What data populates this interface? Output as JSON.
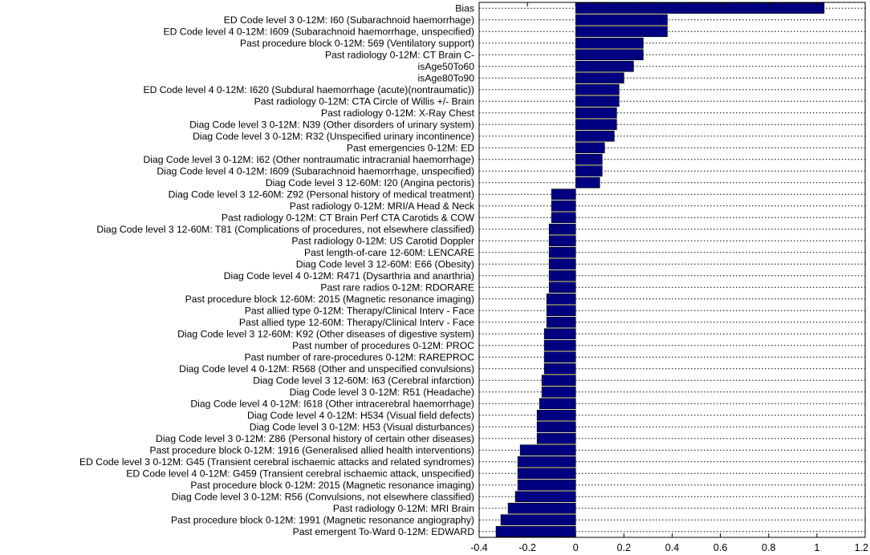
{
  "chart_data": {
    "type": "bar",
    "orientation": "horizontal",
    "categories": [
      "Bias",
      "ED Code level 3 0-12M: I60 (Subarachnoid haemorrhage)",
      "ED Code level 4 0-12M: I609 (Subarachnoid haemorrhage, unspecified)",
      "Past procedure block 0-12M: 569 (Ventilatory support)",
      "Past radiology 0-12M: CT Brain C-",
      "isAge50To60",
      "isAge80To90",
      "ED Code level 4 0-12M: I620 (Subdural haemorrhage (acute)(nontraumatic))",
      "Past radiology 0-12M: CTA Circle of Willis +/- Brain",
      "Past radiology 0-12M: X-Ray Chest",
      "Diag Code level 3 0-12M: N39 (Other disorders of urinary system)",
      "Diag Code level 3 0-12M: R32 (Unspecified urinary incontinence)",
      "Past emergencies 0-12M: ED",
      "Diag Code level 3 0-12M: I62 (Other nontraumatic intracranial haemorrhage)",
      "Diag Code level 4 0-12M: I609 (Subarachnoid haemorrhage, unspecified)",
      "Diag Code level 3 12-60M: I20 (Angina pectoris)",
      "Diag Code level 3 12-60M: Z92 (Personal history of medical treatment)",
      "Past radiology 0-12M: MRI/A Head & Neck",
      "Past radiology 0-12M: CT Brain Perf CTA Carotids & COW",
      "Diag Code level 3 12-60M: T81 (Complications of procedures, not elsewhere classified)",
      "Past radiology 0-12M: US Carotid Doppler",
      "Past length-of-care 12-60M: LENCARE",
      "Diag Code level 3 12-60M: E66 (Obesity)",
      "Diag Code level 4 0-12M: R471 (Dysarthria and anarthria)",
      "Past rare radios 0-12M: RDORARE",
      "Past procedure block 12-60M: 2015 (Magnetic resonance imaging)",
      "Past allied type 0-12M: Therapy/Clinical Interv - Face",
      "Past allied type 12-60M: Therapy/Clinical Interv - Face",
      "Diag Code level 3 12-60M: K92 (Other diseases of digestive system)",
      "Past number of procedures 0-12M: PROC",
      "Past number of rare-procedures 0-12M: RAREPROC",
      "Diag Code level 4 0-12M: R568 (Other and unspecified convulsions)",
      "Diag Code level 3 12-60M: I63 (Cerebral infarction)",
      "Diag Code level 3 0-12M: R51 (Headache)",
      "Diag Code level 4 0-12M: I618 (Other intracerebral haemorrhage)",
      "Diag Code level 4 0-12M: H534 (Visual field defects)",
      "Diag Code level 3 0-12M: H53 (Visual disturbances)",
      "Diag Code level 3 0-12M: Z86 (Personal history of certain other diseases)",
      "Past procedure block 0-12M: 1916 (Generalised allied health interventions)",
      "ED Code level 3 0-12M: G45 (Transient cerebral ischaemic attacks and related syndromes)",
      "ED Code level 4 0-12M: G459 (Transient cerebral ischaemic attack, unspecified)",
      "Past procedure block 0-12M: 2015 (Magnetic resonance imaging)",
      "Diag Code level 3 0-12M: R56 (Convulsions, not elsewhere classified)",
      "Past radiology 0-12M: MRI Brain",
      "Past procedure block 0-12M: 1991 (Magnetic resonance angiography)",
      "Past emergent To-Ward  0-12M: EDWARD"
    ],
    "values": [
      1.03,
      0.38,
      0.38,
      0.28,
      0.28,
      0.24,
      0.2,
      0.18,
      0.18,
      0.17,
      0.17,
      0.16,
      0.12,
      0.11,
      0.11,
      0.1,
      -0.1,
      -0.1,
      -0.1,
      -0.11,
      -0.11,
      -0.11,
      -0.11,
      -0.11,
      -0.11,
      -0.12,
      -0.12,
      -0.12,
      -0.13,
      -0.13,
      -0.13,
      -0.13,
      -0.14,
      -0.14,
      -0.15,
      -0.16,
      -0.16,
      -0.16,
      -0.23,
      -0.24,
      -0.24,
      -0.24,
      -0.25,
      -0.28,
      -0.31,
      -0.33
    ],
    "xlim": [
      -0.4,
      1.2
    ],
    "xticks": [
      "-0.4",
      "-0.2",
      "0",
      "0.2",
      "0.4",
      "0.6",
      "0.8",
      "1",
      "1.2"
    ],
    "xtick_values": [
      -0.4,
      -0.2,
      0,
      0.2,
      0.4,
      0.6,
      0.8,
      1.0,
      1.2
    ],
    "grid": "horizontal dotted",
    "bar_color": "#000080",
    "title": "",
    "xlabel": "",
    "ylabel": ""
  }
}
